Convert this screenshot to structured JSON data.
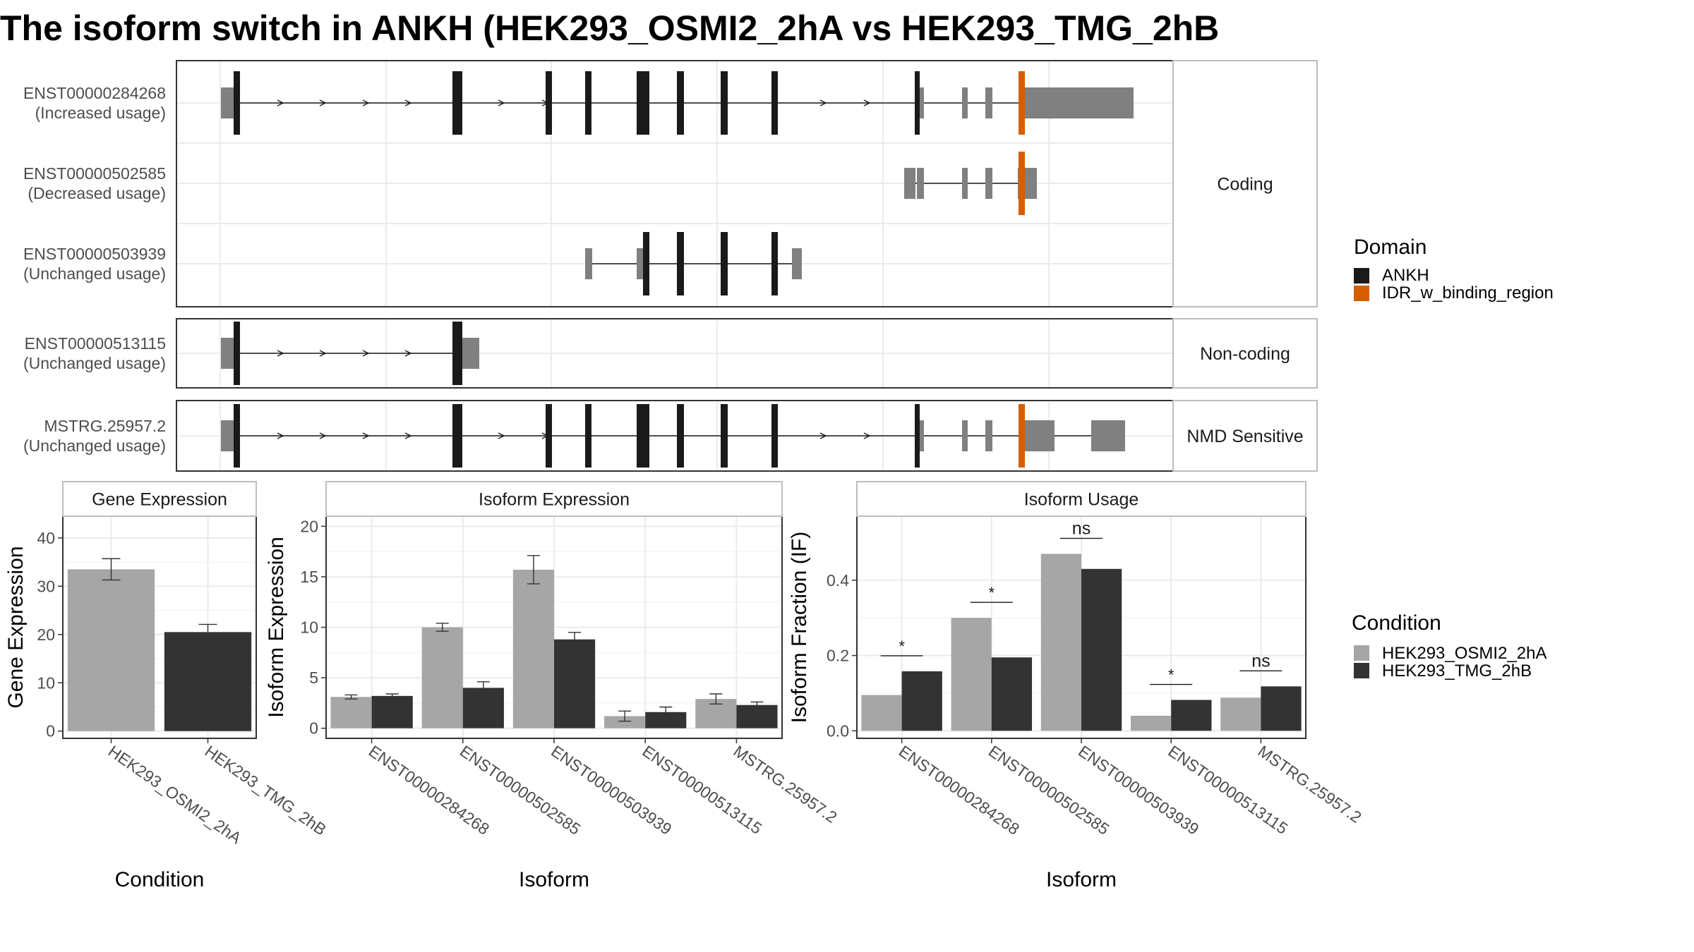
{
  "title": "The isoform switch in ANKH (HEK293_OSMI2_2hA vs HEK293_TMG_2hB",
  "colors": {
    "cds": "#1a1a1a",
    "utr": "#808080",
    "idr": "#d55e00",
    "cond_a": "#a6a6a6",
    "cond_b": "#333333"
  },
  "transcripts": {
    "isoforms": [
      {
        "id": "ENST00000284268",
        "usage": "(Increased usage)"
      },
      {
        "id": "ENST00000502585",
        "usage": "(Decreased usage)"
      },
      {
        "id": "ENST00000503939",
        "usage": "(Unchanged usage)"
      },
      {
        "id": "ENST00000513115",
        "usage": "(Unchanged usage)"
      },
      {
        "id": "MSTRG.25957.2",
        "usage": "(Unchanged usage)"
      }
    ],
    "groups": [
      "Coding",
      "Non-coding",
      "NMD Sensitive"
    ]
  },
  "domain_legend": {
    "title": "Domain",
    "items": [
      "ANKH",
      "IDR_w_binding_region"
    ]
  },
  "condition_legend": {
    "title": "Condition",
    "items": [
      "HEK293_OSMI2_2hA",
      "HEK293_TMG_2hB"
    ]
  },
  "chart_data": [
    {
      "type": "bar",
      "title": "Gene Expression",
      "xlabel": "Condition",
      "ylabel": "Gene Expression",
      "categories": [
        "HEK293_OSMI2_2hA",
        "HEK293_TMG_2hB"
      ],
      "values": [
        33.5,
        20.5
      ],
      "errors": [
        [
          31.3,
          35.7
        ],
        [
          19.0,
          22.1
        ]
      ],
      "yticks": [
        0,
        10,
        20,
        30,
        40
      ],
      "ylim": [
        -1.5,
        44.5
      ]
    },
    {
      "type": "bar",
      "title": "Isoform Expression",
      "xlabel": "Isoform",
      "ylabel": "Isoform Expression",
      "categories": [
        "ENST00000284268",
        "ENST00000502585",
        "ENST00000503939",
        "ENST00000513115",
        "MSTRG.25957.2"
      ],
      "series": [
        {
          "name": "HEK293_OSMI2_2hA",
          "values": [
            3.1,
            10.0,
            15.7,
            1.2,
            2.9
          ],
          "errors": [
            [
              2.9,
              3.3
            ],
            [
              9.6,
              10.4
            ],
            [
              14.3,
              17.1
            ],
            [
              0.7,
              1.7
            ],
            [
              2.4,
              3.4
            ]
          ]
        },
        {
          "name": "HEK293_TMG_2hB",
          "values": [
            3.2,
            4.0,
            8.8,
            1.6,
            2.3
          ],
          "errors": [
            [
              3.0,
              3.4
            ],
            [
              3.4,
              4.6
            ],
            [
              8.1,
              9.5
            ],
            [
              1.1,
              2.1
            ],
            [
              2.0,
              2.6
            ]
          ]
        }
      ],
      "yticks": [
        0,
        5,
        10,
        15,
        20
      ],
      "ylim": [
        -1.0,
        21.0
      ]
    },
    {
      "type": "bar",
      "title": "Isoform Usage",
      "xlabel": "Isoform",
      "ylabel": "Isoform Fraction (IF)",
      "categories": [
        "ENST00000284268",
        "ENST00000502585",
        "ENST00000503939",
        "ENST00000513115",
        "MSTRG.25957.2"
      ],
      "series": [
        {
          "name": "HEK293_OSMI2_2hA",
          "values": [
            0.095,
            0.3,
            0.47,
            0.04,
            0.088
          ]
        },
        {
          "name": "HEK293_TMG_2hB",
          "values": [
            0.158,
            0.195,
            0.43,
            0.082,
            0.118
          ]
        }
      ],
      "significance": [
        "*",
        "*",
        "ns",
        "*",
        "ns"
      ],
      "yticks": [
        0.0,
        0.2,
        0.4
      ],
      "ytick_labels": [
        "0.0",
        "0.2",
        "0.4"
      ],
      "ylim": [
        -0.02,
        0.57
      ]
    }
  ]
}
